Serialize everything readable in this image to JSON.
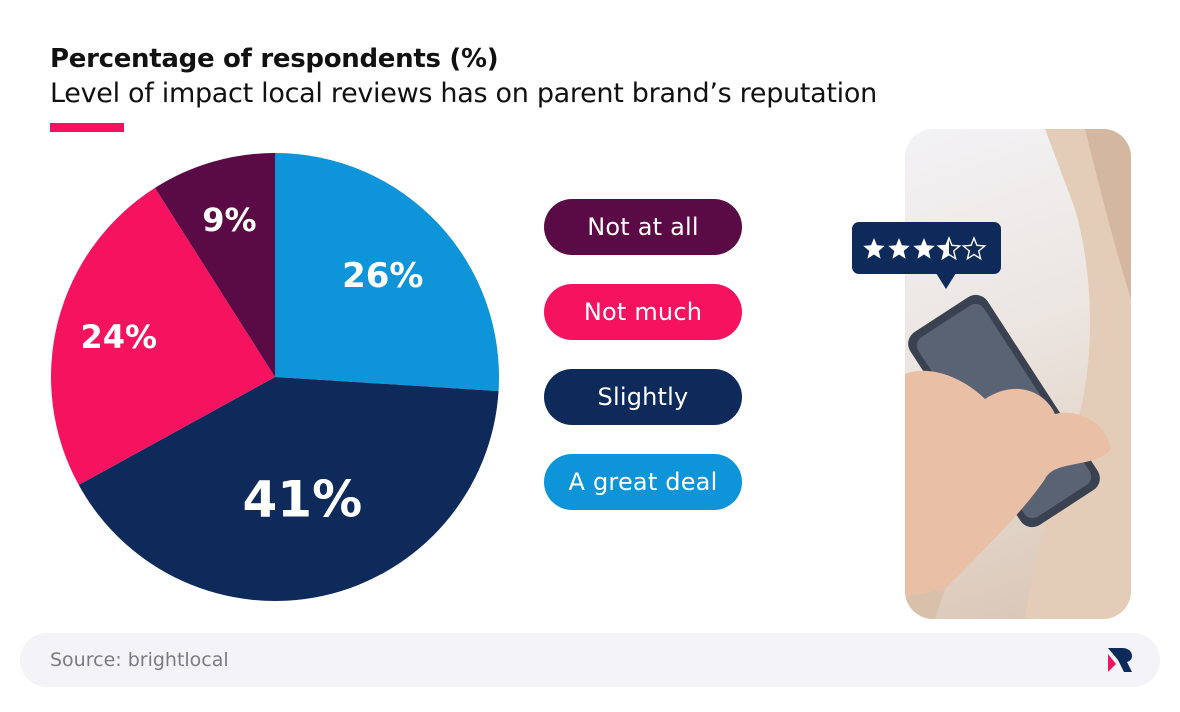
{
  "header": {
    "title": "Percentage of respondents (%)",
    "subtitle": "Level of impact local reviews has on parent brand’s reputation"
  },
  "colors": {
    "accent": "#f5125f",
    "not_at_all": "#5a0a44",
    "not_much": "#f5125f",
    "slightly": "#0d2a5b",
    "a_great_deal": "#0d94d9"
  },
  "chart_data": {
    "type": "pie",
    "title": "Percentage of respondents (%)",
    "subtitle": "Level of impact local reviews has on parent brand’s reputation",
    "slices": [
      {
        "name": "A great deal",
        "value": 26,
        "label": "26%",
        "color": "#0d94d9"
      },
      {
        "name": "Slightly",
        "value": 41,
        "label": "41%",
        "color": "#0d2a5b"
      },
      {
        "name": "Not much",
        "value": 24,
        "label": "24%",
        "color": "#f5125f"
      },
      {
        "name": "Not at all",
        "value": 9,
        "label": "9%",
        "color": "#5a0a44"
      }
    ],
    "start_angle": "12 o'clock",
    "direction": "clockwise",
    "legend_position": "right"
  },
  "legend": [
    {
      "label": "Not at all",
      "color": "#5a0a44"
    },
    {
      "label": "Not much",
      "color": "#f5125f"
    },
    {
      "label": "Slightly",
      "color": "#0d2a5b"
    },
    {
      "label": "A great deal",
      "color": "#0d94d9"
    }
  ],
  "review_bubble": {
    "stars": "★★★⯪☆",
    "rating": 3.5,
    "max_rating": 5
  },
  "footer": {
    "source": "Source: brightlocal",
    "logo_icon": "brightlocal-logo-icon"
  }
}
